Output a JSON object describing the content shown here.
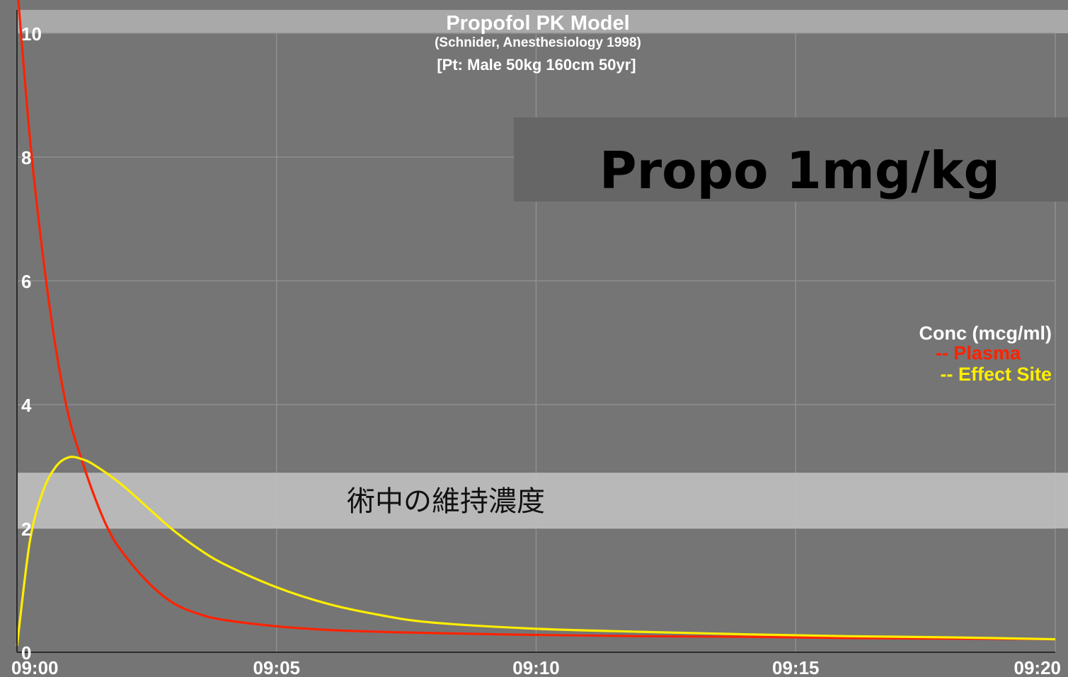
{
  "chart_data": {
    "type": "line",
    "title": "Propofol PK Model",
    "subtitle": "(Schnider, Anesthesiology 1998)",
    "patient_line": "[Pt: Male 50kg 160cm 50yr]",
    "xlabel": "",
    "ylabel": "",
    "x_ticks": [
      "09:00",
      "09:05",
      "09:10",
      "09:15",
      "09:20"
    ],
    "x_range_minutes": [
      0,
      20
    ],
    "y_ticks": [
      "0",
      "2",
      "4",
      "6",
      "8",
      "10"
    ],
    "ylim": [
      0,
      10
    ],
    "grid": true,
    "legend": {
      "title": "Conc (mcg/ml)",
      "placement": "right",
      "entries": [
        "-- Plasma",
        "-- Effect Site"
      ]
    },
    "series": [
      {
        "name": "Plasma",
        "color": "#ff2200",
        "x": [
          0,
          0.25,
          0.5,
          0.75,
          1,
          1.25,
          1.5,
          1.75,
          2,
          2.5,
          3,
          3.5,
          4,
          5,
          6,
          7,
          8,
          10,
          12,
          14,
          16,
          18,
          20
        ],
        "y": [
          10.8,
          8.3,
          6.4,
          4.9,
          3.8,
          3.1,
          2.5,
          2.0,
          1.65,
          1.15,
          0.8,
          0.62,
          0.52,
          0.42,
          0.36,
          0.33,
          0.31,
          0.28,
          0.26,
          0.25,
          0.23,
          0.22,
          0.21
        ]
      },
      {
        "name": "Effect Site",
        "color": "#ffee00",
        "x": [
          0,
          0.25,
          0.5,
          0.75,
          1,
          1.25,
          1.5,
          2,
          2.5,
          3,
          3.5,
          4,
          5,
          6,
          7,
          8,
          10,
          12,
          14,
          16,
          18,
          20
        ],
        "y": [
          0.1,
          1.8,
          2.6,
          3.0,
          3.15,
          3.12,
          3.02,
          2.72,
          2.35,
          1.98,
          1.67,
          1.42,
          1.05,
          0.78,
          0.6,
          0.48,
          0.38,
          0.33,
          0.29,
          0.26,
          0.24,
          0.21
        ]
      }
    ],
    "annotations": [
      {
        "text": "Propo 1mg/kg",
        "type": "badge"
      },
      {
        "text": "術中の維持濃度",
        "type": "band",
        "y_range": [
          2,
          2.9
        ]
      }
    ],
    "colors": {
      "plot_background": "#757575",
      "title_bar": "#a9a9a9",
      "grid": "#8f8f8f",
      "band": "#bebebe",
      "badge": "#666666"
    }
  }
}
